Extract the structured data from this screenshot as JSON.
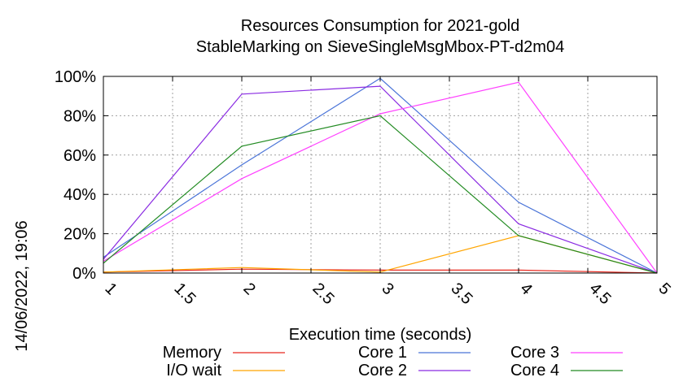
{
  "chart_data": {
    "type": "line",
    "title": "Resources Consumption for 2021-gold",
    "subtitle": "StableMarking on SieveSingleMsgMbox-PT-d2m04",
    "xlabel": "Execution time (seconds)",
    "ylabel": "",
    "timestamp": "14/06/2022, 19:06",
    "xlim": [
      1,
      5
    ],
    "ylim": [
      0,
      100
    ],
    "x_ticks": [
      {
        "value": 1,
        "label": "1"
      },
      {
        "value": 1.5,
        "label": "1.5"
      },
      {
        "value": 2,
        "label": "2"
      },
      {
        "value": 2.5,
        "label": "2.5"
      },
      {
        "value": 3,
        "label": "3"
      },
      {
        "value": 3.5,
        "label": "3.5"
      },
      {
        "value": 4,
        "label": "4"
      },
      {
        "value": 4.5,
        "label": "4.5"
      },
      {
        "value": 5,
        "label": "5"
      }
    ],
    "y_ticks": [
      {
        "value": 0,
        "label": "0%"
      },
      {
        "value": 20,
        "label": "20%"
      },
      {
        "value": 40,
        "label": "40%"
      },
      {
        "value": 60,
        "label": "60%"
      },
      {
        "value": 80,
        "label": "80%"
      },
      {
        "value": 100,
        "label": "100%"
      }
    ],
    "grid": true,
    "legend_position": "bottom",
    "series": [
      {
        "name": "Memory",
        "color": "#e8281e",
        "x": [
          1,
          2,
          3,
          4,
          5
        ],
        "y": [
          0.5,
          2.0,
          1.5,
          1.5,
          0
        ]
      },
      {
        "name": "I/O wait",
        "color": "#ffa500",
        "x": [
          1,
          2,
          3,
          4,
          5
        ],
        "y": [
          0.5,
          2.8,
          0.5,
          19,
          0
        ]
      },
      {
        "name": "Core 1",
        "color": "#4a74d8",
        "x": [
          1,
          2,
          3,
          4,
          5
        ],
        "y": [
          8,
          55,
          99,
          36,
          0
        ]
      },
      {
        "name": "Core 2",
        "color": "#8a2be2",
        "x": [
          1,
          2,
          3,
          4,
          5
        ],
        "y": [
          7,
          91,
          95,
          25,
          0
        ]
      },
      {
        "name": "Core 3",
        "color": "#ff40ff",
        "x": [
          1,
          2,
          3,
          4,
          5
        ],
        "y": [
          6,
          48,
          81,
          97,
          0
        ]
      },
      {
        "name": "Core 4",
        "color": "#228b22",
        "x": [
          1,
          2,
          3,
          4,
          5
        ],
        "y": [
          5,
          64.5,
          80,
          19,
          0
        ]
      }
    ]
  }
}
